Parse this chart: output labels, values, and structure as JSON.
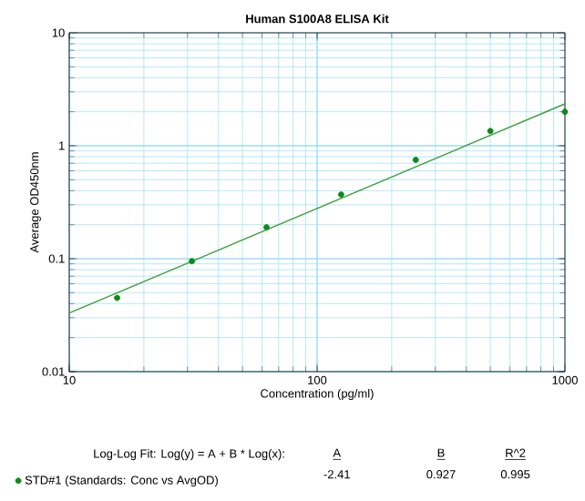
{
  "chart_data": {
    "type": "scatter",
    "title": "Human S100A8 ELISA Kit",
    "xlabel": "Concentration (pg/ml)",
    "ylabel": "Average OD450nm",
    "log": "xy",
    "grid": true,
    "legend": "bottom",
    "xlim": [
      10,
      1000
    ],
    "ylim": [
      0.01,
      10
    ],
    "xticks": [
      10,
      100,
      1000
    ],
    "yticks": [
      0.01,
      0.1,
      1,
      10
    ],
    "series": [
      {
        "name": "STD#1 (Standards: Conc vs AvgOD)",
        "marker": "circle",
        "color": "#0a8a1a",
        "x": [
          15.6,
          31.25,
          62.5,
          125,
          250,
          500,
          1000
        ],
        "values": [
          0.045,
          0.095,
          0.19,
          0.37,
          0.75,
          1.35,
          2.0
        ]
      },
      {
        "type": "line",
        "marker": "none",
        "color": "#3ca03c",
        "x": [
          10,
          1000
        ],
        "values": [
          0.033,
          2.35
        ]
      }
    ],
    "annotations": [
      "Log-Log Fit: Log(y) = A + B * Log(x):",
      "A",
      "B",
      "R^2",
      "-2.41",
      "0.927",
      "0.995"
    ]
  }
}
